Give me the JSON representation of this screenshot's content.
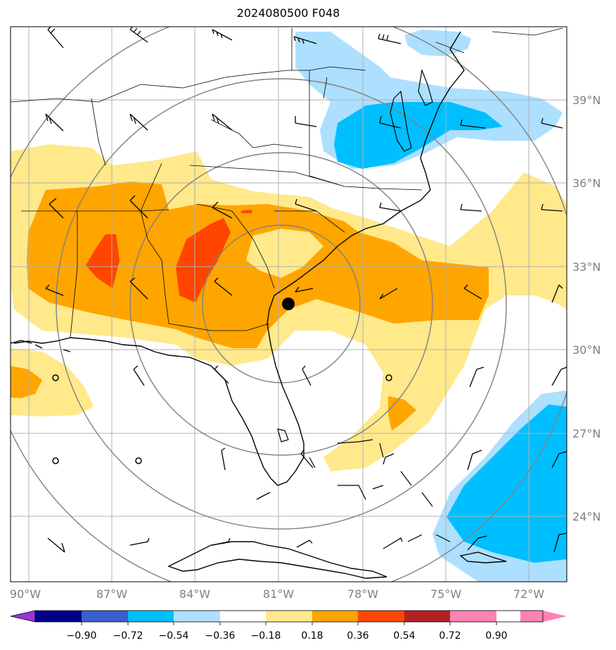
{
  "title": "2024080500 F048",
  "lon_ticks": [
    "90°W",
    "87°W",
    "84°W",
    "81°W",
    "78°W",
    "75°W",
    "72°W"
  ],
  "lat_ticks": [
    "39°N",
    "36°N",
    "33°N",
    "30°N",
    "27°N",
    "24°N"
  ],
  "colorbar": {
    "labels": [
      "−0.90",
      "−0.72",
      "−0.54",
      "−0.36",
      "−0.18",
      "0.18",
      "0.36",
      "0.54",
      "0.72",
      "0.90"
    ],
    "colors": [
      "#9a35d8",
      "#00008b",
      "#3a5fd0",
      "#00bfff",
      "#addfff",
      "#ffffff",
      "#ffe98a",
      "#ffa500",
      "#ff4500",
      "#b22222",
      "#ff82b4"
    ]
  },
  "field_colors": {
    "light_yellow": "#ffe98a",
    "orange": "#ffa500",
    "red_orange": "#ff4500",
    "light_blue": "#addfff",
    "deep_sky_blue": "#00bfff"
  },
  "marker": {
    "color": "#000000",
    "lon": -80.6,
    "lat": 31.6
  }
}
